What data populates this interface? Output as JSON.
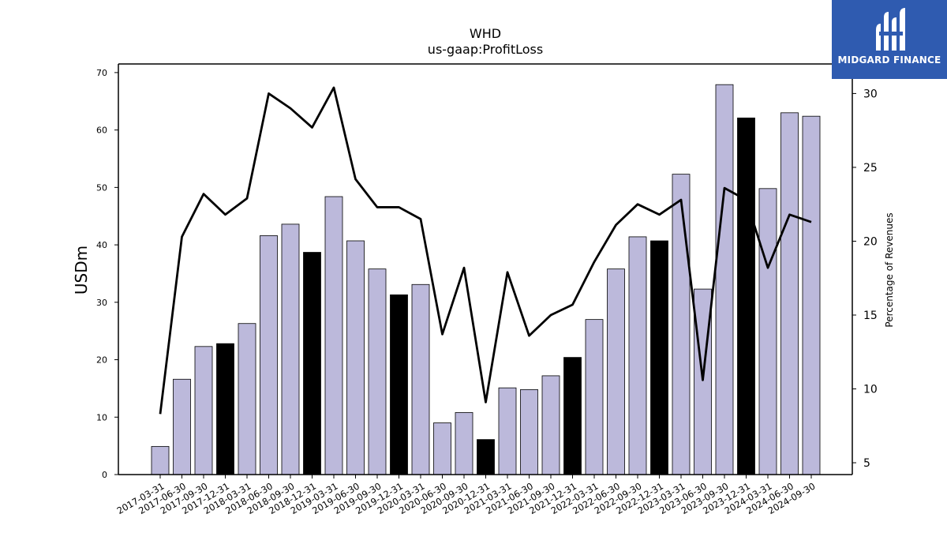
{
  "chart_data": {
    "type": "bar",
    "title": "WHD",
    "subtitle": "us-gaap:ProfitLoss",
    "ylabel": "USDm",
    "y2label": "Percentage of Revenues",
    "ylim": [
      0,
      71.5
    ],
    "y2lim": [
      4.2,
      32.0
    ],
    "yticks": [
      0,
      10,
      20,
      30,
      40,
      50,
      60,
      70
    ],
    "y2ticks": [
      5,
      10,
      15,
      20,
      25,
      30
    ],
    "categories": [
      "2017-03-31",
      "2017-06-30",
      "2017-09-30",
      "2017-12-31",
      "2018-03-31",
      "2018-06-30",
      "2018-09-30",
      "2018-12-31",
      "2019-03-31",
      "2019-06-30",
      "2019-09-30",
      "2019-12-31",
      "2020-03-31",
      "2020-06-30",
      "2020-09-30",
      "2020-12-31",
      "2021-03-31",
      "2021-06-30",
      "2021-09-30",
      "2021-12-31",
      "2022-03-31",
      "2022-06-30",
      "2022-09-30",
      "2022-12-31",
      "2023-03-31",
      "2023-06-30",
      "2023-09-30",
      "2023-12-31",
      "2024-03-31",
      "2024-06-30",
      "2024-09-30"
    ],
    "series": [
      {
        "values": [
          4.9,
          16.6,
          22.3,
          22.8,
          26.3,
          41.6,
          43.6,
          38.7,
          48.4,
          40.7,
          35.8,
          31.3,
          33.1,
          9.0,
          10.8,
          6.1,
          15.1,
          14.8,
          17.2,
          20.4,
          27.0,
          35.8,
          41.4,
          40.7,
          52.3,
          32.3,
          67.9,
          62.1,
          49.8,
          63.0,
          62.4
        ],
        "highlight": [
          false,
          false,
          false,
          true,
          false,
          false,
          false,
          true,
          false,
          false,
          false,
          true,
          false,
          false,
          false,
          true,
          false,
          false,
          false,
          true,
          false,
          false,
          false,
          true,
          false,
          false,
          false,
          true,
          false,
          false,
          false
        ],
        "color": "#bcb9db",
        "highlight_color": "#000000"
      },
      {
        "type": "line",
        "axis": "right",
        "values": [
          8.3,
          20.3,
          23.2,
          21.8,
          22.9,
          30.0,
          29.0,
          27.7,
          30.4,
          24.2,
          22.3,
          22.3,
          21.5,
          13.7,
          18.2,
          9.1,
          17.9,
          13.6,
          15.0,
          15.7,
          18.6,
          21.1,
          22.5,
          21.8,
          22.8,
          10.6,
          23.6,
          22.8,
          18.2,
          21.8,
          21.3
        ],
        "color": "#000000"
      }
    ]
  },
  "logo": {
    "text": "MIDGARD FINANCE",
    "bg_color": "#2f5bb0",
    "icon": "midgard-logo-icon"
  }
}
